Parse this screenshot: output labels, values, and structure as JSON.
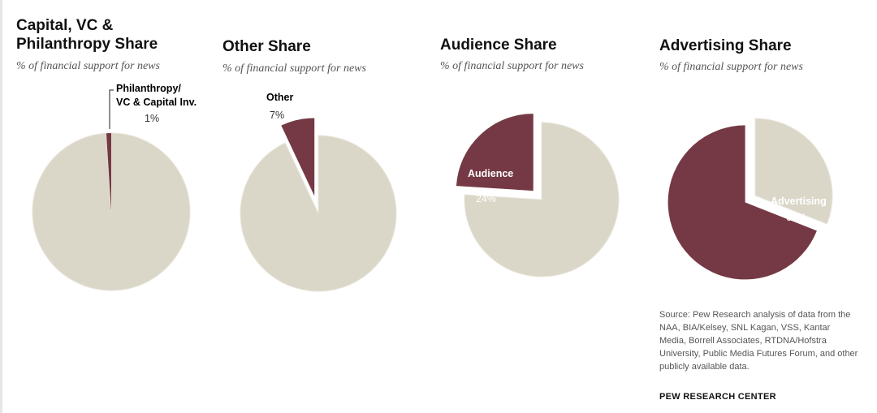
{
  "colors": {
    "highlight": "#743944",
    "rest": "#dbd7c8",
    "edge": "#e8e5da"
  },
  "chart_data": [
    {
      "type": "pie",
      "title_lines": [
        "Capital, VC &",
        "Philanthropy Share"
      ],
      "subtitle": "% of financial support for news",
      "highlight": {
        "label_lines": [
          "Philanthropy/",
          "VC & Capital Inv."
        ],
        "value_text": "1%",
        "value": 1
      },
      "rest_value": 99
    },
    {
      "type": "pie",
      "title_lines": [
        "Other Share"
      ],
      "subtitle": "% of financial support for news",
      "highlight": {
        "label_lines": [
          "Other"
        ],
        "value_text": "7%",
        "value": 7
      },
      "rest_value": 93
    },
    {
      "type": "pie",
      "title_lines": [
        "Audience Share"
      ],
      "subtitle": "% of financial support for news",
      "highlight": {
        "label_lines": [
          "Audience"
        ],
        "value_text": "24%",
        "value": 24
      },
      "rest_value": 76
    },
    {
      "type": "pie",
      "title_lines": [
        "Advertising Share"
      ],
      "subtitle": "% of financial support for news",
      "highlight": {
        "label_lines": [
          "Advertising"
        ],
        "value_text": "69%",
        "value": 69
      },
      "rest_value": 31
    }
  ],
  "source": "Source: Pew Research analysis of data from the NAA, BIA/Kelsey, SNL Kagan, VSS, Kantar Media, Borrell Associates, RTDNA/Hofstra University, Public Media Futures Forum, and other publicly available data.",
  "brand": "PEW RESEARCH CENTER"
}
